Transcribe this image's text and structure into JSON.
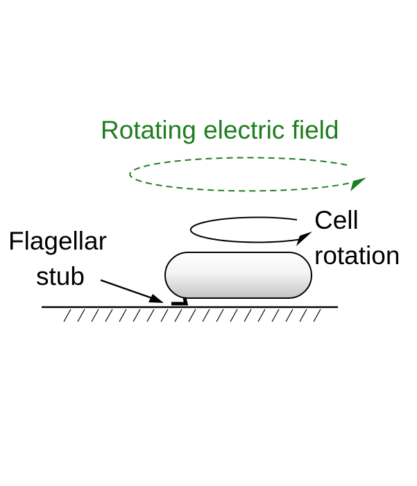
{
  "labels": {
    "field": "Rotating electric field",
    "cell_line1": "Cell",
    "cell_line2": "rotation",
    "stub_line1": "Flagellar",
    "stub_line2": "stub"
  },
  "colors": {
    "field": "#1e7d1e",
    "ink": "#000000",
    "cell_light": "#ffffff",
    "cell_dark": "#c4c4c4"
  }
}
